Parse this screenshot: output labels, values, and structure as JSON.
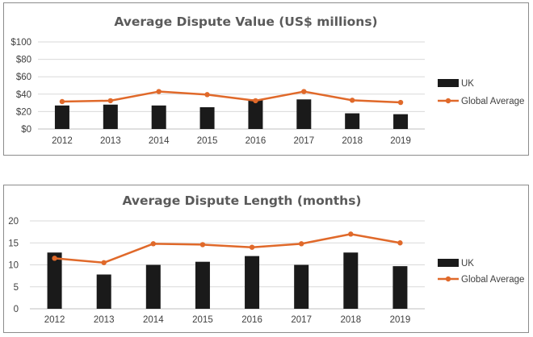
{
  "chart_data": [
    {
      "type": "bar+line",
      "title": "Average Dispute Value (US$ millions)",
      "categories": [
        "2012",
        "2013",
        "2014",
        "2015",
        "2016",
        "2017",
        "2018",
        "2019"
      ],
      "y_ticks": [
        "$0",
        "$20",
        "$40",
        "$60",
        "$80",
        "$100"
      ],
      "ylim": [
        0,
        100
      ],
      "grid": true,
      "legend_position": "right",
      "series": [
        {
          "name": "UK",
          "kind": "bar",
          "color": "#1a1a1a",
          "values": [
            27,
            28,
            27,
            25,
            34,
            34,
            18,
            17
          ]
        },
        {
          "name": "Global Average",
          "kind": "line",
          "color": "#e0692a",
          "values": [
            31.5,
            32.5,
            43,
            39.5,
            32.5,
            43,
            33,
            30.5
          ]
        }
      ]
    },
    {
      "type": "bar+line",
      "title": "Average Dispute Length (months)",
      "categories": [
        "2012",
        "2013",
        "2014",
        "2015",
        "2016",
        "2017",
        "2018",
        "2019"
      ],
      "y_ticks": [
        "0",
        "5",
        "10",
        "15",
        "20"
      ],
      "ylim": [
        0,
        20
      ],
      "grid": true,
      "legend_position": "right",
      "series": [
        {
          "name": "UK",
          "kind": "bar",
          "color": "#1a1a1a",
          "values": [
            12.8,
            7.8,
            10,
            10.7,
            12,
            10,
            12.8,
            9.7
          ]
        },
        {
          "name": "Global Average",
          "kind": "line",
          "color": "#e0692a",
          "values": [
            11.5,
            10.5,
            14.8,
            14.6,
            14,
            14.8,
            17,
            15
          ]
        }
      ]
    }
  ]
}
